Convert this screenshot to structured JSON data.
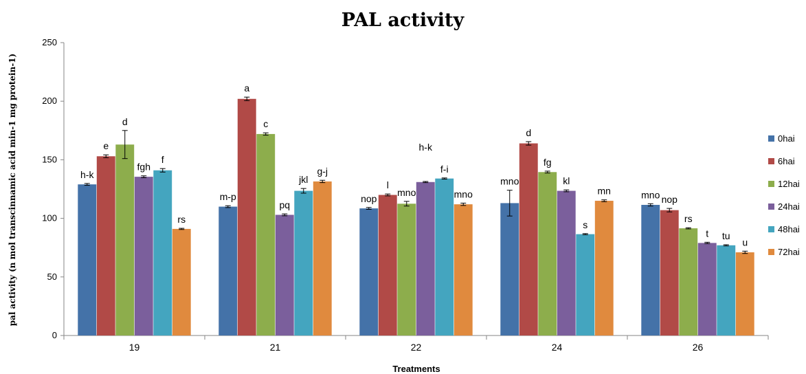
{
  "chart_data": {
    "type": "bar",
    "title": "PAL activity",
    "xlabel": "Treatments",
    "ylabel": "pal activity (n mol transcinnamic acid min-1 mg protein-1)",
    "ylim": [
      0,
      250
    ],
    "yticks": [
      0,
      50,
      100,
      150,
      200,
      250
    ],
    "grid": false,
    "legend_position": "right",
    "categories": [
      "19",
      "21",
      "22",
      "24",
      "26"
    ],
    "series": [
      {
        "name": "0hai",
        "color": "#4472a8",
        "values": [
          129,
          110,
          108.5,
          113,
          111.5
        ],
        "errors": [
          0.8,
          0.8,
          0.8,
          11,
          1.0
        ],
        "labels": [
          "h-k",
          "m-p",
          "nop",
          "mno",
          "mno"
        ]
      },
      {
        "name": "6hai",
        "color": "#b14a47",
        "values": [
          153,
          202,
          120,
          164,
          107
        ],
        "errors": [
          1.2,
          1.5,
          0.8,
          1.5,
          1.5
        ],
        "labels": [
          "e",
          "a",
          "l",
          "d",
          "nop"
        ]
      },
      {
        "name": "12hai",
        "color": "#8dad4c",
        "values": [
          163,
          172,
          112.5,
          139.5,
          91.5
        ],
        "errors": [
          12,
          1.0,
          2.0,
          0.8,
          0.5
        ],
        "labels": [
          "d",
          "c",
          "mno",
          "fg",
          "rs"
        ]
      },
      {
        "name": "24hai",
        "color": "#7b5f9c",
        "values": [
          135.5,
          103,
          131,
          123.5,
          79
        ],
        "errors": [
          0.8,
          0.8,
          0.5,
          0.8,
          0.6
        ],
        "labels": [
          "fgh",
          "pq",
          "h-k",
          "kl",
          "t"
        ]
      },
      {
        "name": "48hai",
        "color": "#44a5bf",
        "values": [
          141,
          123.5,
          134,
          86.5,
          77
        ],
        "errors": [
          1.5,
          2.0,
          0.5,
          0.5,
          0.5
        ],
        "labels": [
          "f",
          "jkl",
          "f-i",
          "s",
          "tu"
        ]
      },
      {
        "name": "72hai",
        "color": "#e08a3e",
        "values": [
          91,
          131.5,
          112,
          115,
          71
        ],
        "errors": [
          0.5,
          1.0,
          1.0,
          0.8,
          1.0
        ],
        "labels": [
          "rs",
          "g-j",
          "mno",
          "mn",
          "u"
        ]
      }
    ]
  }
}
